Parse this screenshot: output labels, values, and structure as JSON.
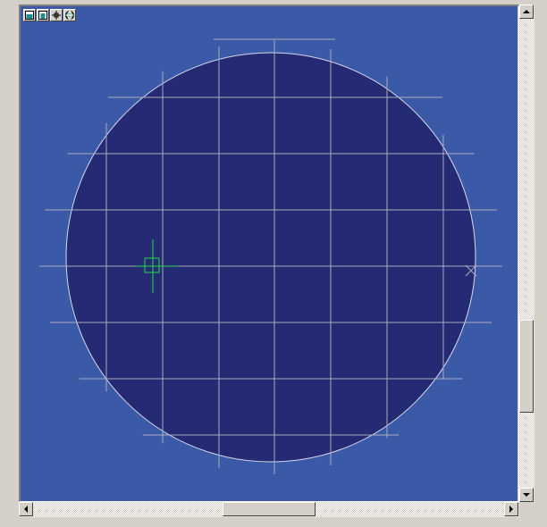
{
  "viewer": {
    "background_color": "#3a5aa8",
    "wafer_fill": "#252a74",
    "wafer_outline": "#d8d8e8",
    "grid_color": "#a9acbe",
    "cursor_color": "#27d63f",
    "reticle_color": "#a9acbe"
  },
  "toolbar": {
    "buttons": [
      {
        "name": "fill-view-icon"
      },
      {
        "name": "fit-view-icon"
      },
      {
        "name": "crosshair-icon"
      },
      {
        "name": "globe-icon"
      }
    ]
  },
  "scrollbars": {
    "vertical": {
      "position_fraction": 0.8
    },
    "horizontal": {
      "position_fraction": 0.5
    }
  }
}
